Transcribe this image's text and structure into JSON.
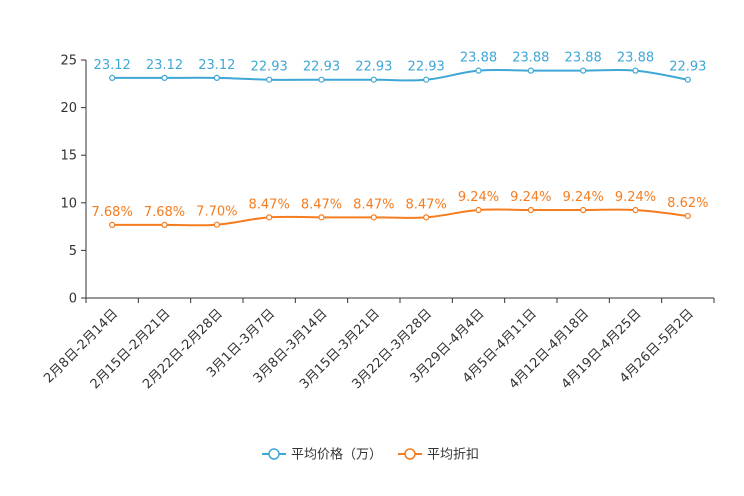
{
  "chart_data": {
    "type": "line",
    "title": "",
    "xlabel": "",
    "ylabel": "",
    "ylim": [
      0,
      25
    ],
    "yticks": [
      0,
      5,
      10,
      15,
      20,
      25
    ],
    "grid": false,
    "legend_position": "bottom-center",
    "categories": [
      "2月8日-2月14日",
      "2月15日-2月21日",
      "2月22日-2月28日",
      "3月1日-3月7日",
      "3月8日-3月14日",
      "3月15日-3月21日",
      "3月22日-3月28日",
      "3月29日-4月4日",
      "4月5日-4月11日",
      "4月12日-4月18日",
      "4月19日-4月25日",
      "4月26日-5月2日"
    ],
    "series": [
      {
        "name": "平均价格（万）",
        "color": "#3fa7d6",
        "values": [
          23.12,
          23.12,
          23.12,
          22.93,
          22.93,
          22.93,
          22.93,
          23.88,
          23.88,
          23.88,
          23.88,
          22.93
        ],
        "labels": [
          "23.12",
          "23.12",
          "23.12",
          "22.93",
          "22.93",
          "22.93",
          "22.93",
          "23.88",
          "23.88",
          "23.88",
          "23.88",
          "22.93"
        ]
      },
      {
        "name": "平均折扣",
        "color": "#f57c1f",
        "values": [
          7.68,
          7.68,
          7.7,
          8.47,
          8.47,
          8.47,
          8.47,
          9.24,
          9.24,
          9.24,
          9.24,
          8.62
        ],
        "labels": [
          "7.68%",
          "7.68%",
          "7.70%",
          "8.47%",
          "8.47%",
          "8.47%",
          "8.47%",
          "9.24%",
          "9.24%",
          "9.24%",
          "9.24%",
          "8.62%"
        ]
      }
    ]
  }
}
